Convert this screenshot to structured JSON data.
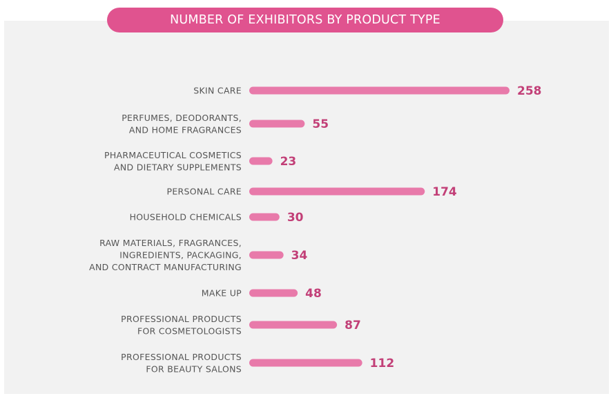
{
  "chart_data": {
    "type": "bar",
    "orientation": "horizontal",
    "title": "NUMBER OF EXHIBITORS BY PRODUCT TYPE",
    "categories": [
      [
        "SKIN CARE"
      ],
      [
        "PERFUMES, DEODORANTS,",
        "AND HOME FRAGRANCES"
      ],
      [
        "PHARMACEUTICAL COSMETICS",
        "AND DIETARY SUPPLEMENTS"
      ],
      [
        "PERSONAL CARE"
      ],
      [
        "HOUSEHOLD CHEMICALS"
      ],
      [
        "RAW MATERIALS, FRAGRANCES,",
        "INGREDIENTS, PACKAGING,",
        "AND CONTRACT MANUFACTURING"
      ],
      [
        "MAKE UP"
      ],
      [
        "PROFESSIONAL PRODUCTS",
        "FOR COSMETOLOGISTS"
      ],
      [
        "PROFESSIONAL PRODUCTS",
        "FOR BEAUTY SALONS"
      ]
    ],
    "values": [
      258,
      55,
      23,
      174,
      30,
      34,
      48,
      87,
      112
    ],
    "xlim": [
      0,
      258
    ],
    "grid": false,
    "legend": "none",
    "colors": {
      "title_bg": "#e0538f",
      "bar": "#e87aaa",
      "value_text": "#c23f77",
      "label_text": "#555555",
      "panel_bg": "#f2f2f2"
    }
  }
}
